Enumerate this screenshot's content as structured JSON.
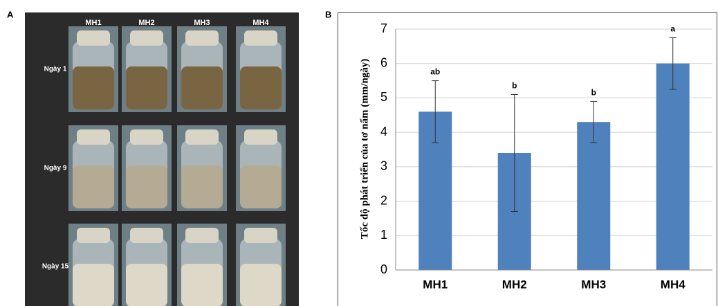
{
  "panel_a": {
    "label": "A",
    "columns": [
      "MH1",
      "MH2",
      "MH3",
      "MH4"
    ],
    "rows": [
      "Ngày 1",
      "Ngày 9",
      "Ngày 15"
    ]
  },
  "chart_data": {
    "type": "bar",
    "panel_label": "B",
    "ylabel": "Tốc độ phát triển của tơ nấm (mm/ngày)",
    "categories": [
      "MH1",
      "MH2",
      "MH3",
      "MH4"
    ],
    "values": [
      4.6,
      3.4,
      4.3,
      6.0
    ],
    "errors": [
      0.9,
      1.7,
      0.6,
      0.75
    ],
    "annotations": [
      "ab",
      "b",
      "b",
      "a"
    ],
    "color": "#4f81bd",
    "ylim": [
      0,
      7
    ],
    "yticks": [
      0,
      1,
      2,
      3,
      4,
      5,
      6,
      7
    ],
    "grid": true
  }
}
